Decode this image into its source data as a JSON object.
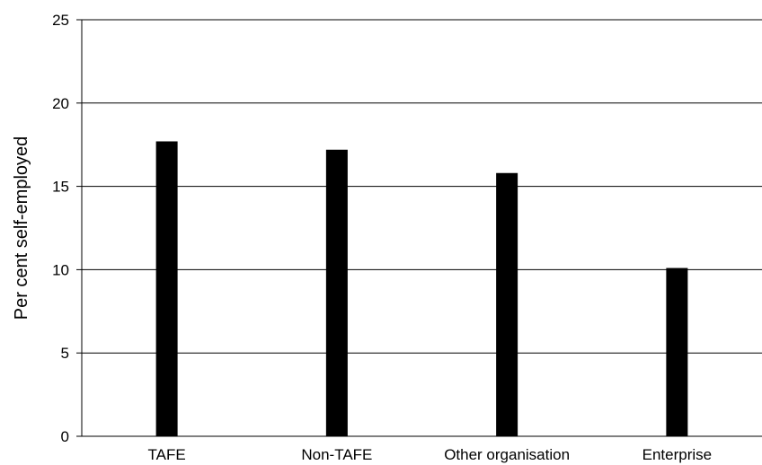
{
  "chart_data": {
    "type": "bar",
    "title": "",
    "xlabel": "",
    "ylabel": "Per cent self-employed",
    "categories": [
      "TAFE",
      "Non-TAFE",
      "Other organisation",
      "Enterprise"
    ],
    "values": [
      17.7,
      17.2,
      15.8,
      10.1
    ],
    "ylim": [
      0,
      25
    ],
    "yticks": [
      0,
      5,
      10,
      15,
      20,
      25
    ],
    "ytick_labels": [
      "0",
      "5",
      "10",
      "15",
      "20",
      "25"
    ],
    "grid": "horizontal",
    "legend": "none",
    "colors": {
      "bar": "#000000",
      "gridline": "#000000",
      "axis": "#000000",
      "background": "#ffffff"
    }
  }
}
